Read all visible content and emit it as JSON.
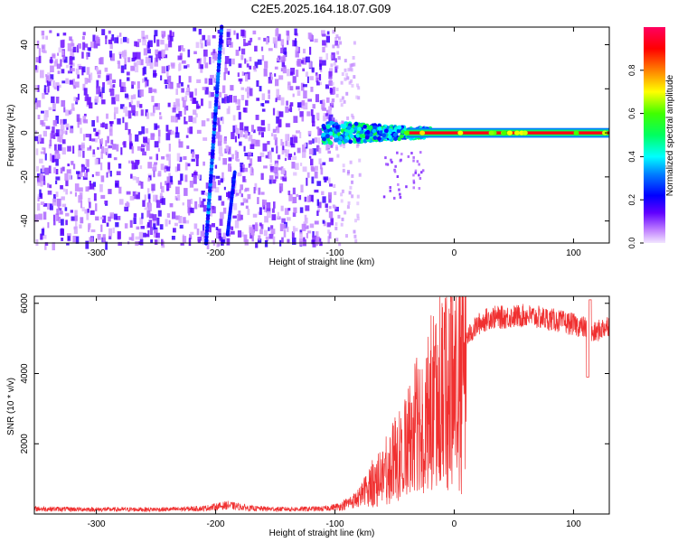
{
  "title": "C2E5.2025.164.18.07.G09",
  "chart_data": [
    {
      "type": "heatmap",
      "xlabel": "Height of straight line (km)",
      "ylabel": "Frequency (Hz)",
      "xlim": [
        -352,
        130
      ],
      "ylim": [
        -50,
        48
      ],
      "xticks": [
        -300,
        -200,
        -100,
        0,
        100
      ],
      "yticks": [
        -40,
        -20,
        0,
        20,
        40
      ],
      "colorbar": {
        "label": "Normalized spectral amplitude",
        "range": [
          0,
          1
        ],
        "ticks": [
          0.0,
          0.2,
          0.4,
          0.6,
          0.8
        ],
        "tick_labels": [
          "0.0",
          "0.2",
          "0.4",
          "0.6",
          "0.8"
        ]
      },
      "regions": [
        {
          "name": "diffuse noise",
          "x_range": [
            -352,
            -100
          ],
          "freq_range": [
            -50,
            48
          ],
          "amplitude": 0.15
        },
        {
          "name": "mirror line 1",
          "x_range": [
            -208,
            -195
          ],
          "freq_range": [
            -50,
            48
          ],
          "amplitude": 0.25
        },
        {
          "name": "mirror line 2",
          "x_range": [
            -190,
            -184
          ],
          "freq_range": [
            -46,
            -18
          ],
          "amplitude": 0.2
        },
        {
          "name": "transition band",
          "x_range": [
            -110,
            -20
          ],
          "freq_range": [
            -6,
            6
          ],
          "amplitude": 0.45
        },
        {
          "name": "carrier line",
          "x_range": [
            -40,
            130
          ],
          "freq_range": [
            -1,
            1
          ],
          "amplitude": 0.95
        }
      ]
    },
    {
      "type": "line",
      "xlabel": "Height of straight line (km)",
      "ylabel": "SNR (10 * v/v)",
      "xlim": [
        -352,
        130
      ],
      "ylim": [
        0,
        6200
      ],
      "xticks": [
        -300,
        -200,
        -100,
        0,
        100
      ],
      "yticks": [
        2000,
        4000,
        6000
      ],
      "color": "#f03030",
      "series": [
        {
          "name": "SNR",
          "x": [
            -352,
            -330,
            -300,
            -270,
            -240,
            -210,
            -190,
            -170,
            -150,
            -130,
            -110,
            -95,
            -80,
            -70,
            -60,
            -50,
            -40,
            -30,
            -20,
            -10,
            0,
            5,
            10,
            20,
            30,
            40,
            60,
            80,
            100,
            110,
            115,
            130
          ],
          "y": [
            150,
            140,
            130,
            130,
            130,
            160,
            250,
            160,
            140,
            140,
            150,
            220,
            450,
            900,
            1200,
            1600,
            2100,
            2700,
            3200,
            3700,
            4200,
            4600,
            5000,
            5400,
            5600,
            5600,
            5650,
            5550,
            5400,
            5300,
            5100,
            5400
          ]
        }
      ]
    }
  ]
}
